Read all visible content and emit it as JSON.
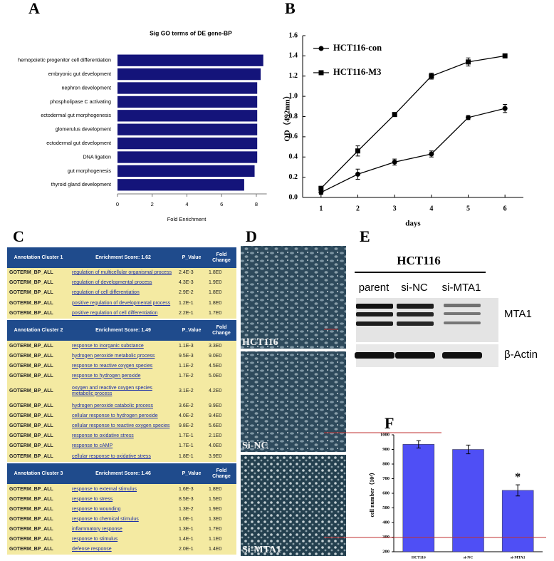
{
  "panel_labels": [
    "A",
    "B",
    "C",
    "D",
    "E",
    "F"
  ],
  "chart_data": [
    {
      "type": "hbar",
      "title": "Sig GO terms of DE gene-BP",
      "xlabel": "Fold Enrichment",
      "categories": [
        "hemopoietic progenitor cell differentiation",
        "embryonic gut development",
        "nephron development",
        "phospholipase C activating",
        "ectodermal gut morphogenesis",
        "glomerulus development",
        "ectodermal gut development",
        "DNA ligation",
        "gut morphogenesis",
        "thyroid gland development"
      ],
      "values": [
        8.4,
        8.25,
        8.05,
        8.05,
        8.05,
        8.05,
        8.05,
        8.05,
        7.9,
        7.3
      ],
      "color": "#14147a",
      "xlim": [
        0,
        8.6
      ],
      "xticks": [
        0,
        2,
        4,
        6,
        8
      ]
    },
    {
      "type": "line",
      "xlabel": "days",
      "ylabel": "OD（492nm）",
      "legend": "upper left",
      "x": [
        1,
        2,
        3,
        4,
        5,
        6
      ],
      "series": [
        {
          "name": "HCT116-con",
          "color": "#000000",
          "marker": "circle",
          "values": [
            0.05,
            0.23,
            0.35,
            0.43,
            0.79,
            0.88
          ],
          "errors": [
            0.02,
            0.05,
            0.03,
            0.03,
            0.02,
            0.04
          ]
        },
        {
          "name": "HCT116-M3",
          "color": "#000000",
          "marker": "square",
          "values": [
            0.09,
            0.46,
            0.82,
            1.2,
            1.34,
            1.4
          ],
          "errors": [
            0.02,
            0.05,
            0.01,
            0.03,
            0.04,
            0.02
          ]
        }
      ],
      "xlim": [
        0.5,
        6.5
      ],
      "xticks": [
        1,
        2,
        3,
        4,
        5,
        6
      ],
      "ylim": [
        0,
        1.6
      ],
      "yticks": [
        {
          "value": 0,
          "label": "0.0"
        },
        0.2,
        0.4,
        0.6,
        0.8,
        {
          "value": 1,
          "label": "1.0"
        },
        1.2,
        1.4,
        1.6
      ]
    },
    {
      "type": "bar",
      "ylabel": "cell number（10⁴）",
      "categories": [
        "HCT116",
        "si-NC",
        "si-MTA1"
      ],
      "values": [
        935,
        900,
        620
      ],
      "errors": [
        25,
        30,
        38
      ],
      "color": "#4f4ff5",
      "ylim": [
        200,
        1000
      ],
      "yticks": [
        200,
        300,
        400,
        500,
        600,
        700,
        800,
        900,
        1000
      ],
      "annotation": "*"
    }
  ],
  "table": {
    "clusters": [
      {
        "title": "Annotation Cluster 1",
        "score": "Enrichment Score: 1.62",
        "headers": [
          "P_Value",
          "Fold Change"
        ],
        "rows": [
          [
            "GOTERM_BP_ALL",
            "regulation of multicellular organismal process",
            "2.4E-3",
            "1.8E0"
          ],
          [
            "GOTERM_BP_ALL",
            "regulation of developmental process",
            "4.3E-3",
            "1.9E0"
          ],
          [
            "GOTERM_BP_ALL",
            "regulation of cell differentiation",
            "2.9E-2",
            "1.8E0"
          ],
          [
            "GOTERM_BP_ALL",
            "positive regulation of developmental process",
            "1.2E-1",
            "1.8E0"
          ],
          [
            "GOTERM_BP_ALL",
            "positive regulation of cell differentiation",
            "2.2E-1",
            "1.7E0"
          ]
        ]
      },
      {
        "title": "Annotation Cluster 2",
        "score": "Enrichment Score: 1.49",
        "headers": [
          "P_Value",
          "Fold Change"
        ],
        "rows": [
          [
            "GOTERM_BP_ALL",
            "response to inorganic substance",
            "1.1E-3",
            "3.3E0"
          ],
          [
            "GOTERM_BP_ALL",
            "hydrogen peroxide metabolic process",
            "9.5E-3",
            "9.0E0"
          ],
          [
            "GOTERM_BP_ALL",
            "response to reactive oxygen species",
            "1.1E-2",
            "4.5E0"
          ],
          [
            "GOTERM_BP_ALL",
            "response to hydrogen peroxide",
            "1.7E-2",
            "5.0E0"
          ],
          [
            "GOTERM_BP_ALL",
            "oxygen and reactive oxygen species metabolic process",
            "3.1E-2",
            "4.2E0"
          ],
          [
            "GOTERM_BP_ALL",
            "hydrogen peroxide catabolic process",
            "3.6E-2",
            "9.9E0"
          ],
          [
            "GOTERM_BP_ALL",
            "cellular response to hydrogen peroxide",
            "4.0E-2",
            "9.4E0"
          ],
          [
            "GOTERM_BP_ALL",
            "cellular response to reactive oxygen species",
            "9.8E-2",
            "5.6E0"
          ],
          [
            "GOTERM_BP_ALL",
            "response to oxidative stress",
            "1.7E-1",
            "2.1E0"
          ],
          [
            "GOTERM_BP_ALL",
            "response to cAMP",
            "1.7E-1",
            "4.0E0"
          ],
          [
            "GOTERM_BP_ALL",
            "cellular response to oxidative stress",
            "1.8E-1",
            "3.9E0"
          ]
        ]
      },
      {
        "title": "Annotation Cluster 3",
        "score": "Enrichment Score: 1.46",
        "headers": [
          "P_Value",
          "Fold Change"
        ],
        "rows": [
          [
            "GOTERM_BP_ALL",
            "response to external stimulus",
            "1.6E-3",
            "1.8E0"
          ],
          [
            "GOTERM_BP_ALL",
            "response to stress",
            "8.5E-3",
            "1.5E0"
          ],
          [
            "GOTERM_BP_ALL",
            "response to wounding",
            "1.3E-2",
            "1.9E0"
          ],
          [
            "GOTERM_BP_ALL",
            "response to chemical stimulus",
            "1.0E-1",
            "1.3E0"
          ],
          [
            "GOTERM_BP_ALL",
            "inflammatory response",
            "1.3E-1",
            "1.7E0"
          ],
          [
            "GOTERM_BP_ALL",
            "response to stimulus",
            "1.4E-1",
            "1.1E0"
          ],
          [
            "GOTERM_BP_ALL",
            "defense response",
            "2.0E-1",
            "1.4E0"
          ]
        ]
      }
    ]
  },
  "images": {
    "labels": [
      "HCT116",
      "Si-NC",
      "Si-MTA1"
    ]
  },
  "blot": {
    "title": "HCT116",
    "lanes": [
      "parent",
      "si-NC",
      "si-MTA1"
    ],
    "proteins": [
      "MTA1",
      "β-Actin"
    ]
  }
}
